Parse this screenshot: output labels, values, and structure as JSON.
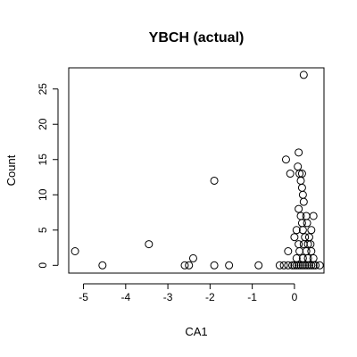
{
  "chart_data": {
    "type": "scatter",
    "title": "YBCH (actual)",
    "xlabel": "CA1",
    "ylabel": "Count",
    "xlim": [
      -5.35,
      0.7
    ],
    "ylim": [
      -1.1,
      28.0
    ],
    "xticks": [
      -5,
      -4,
      -3,
      -2,
      -1,
      0
    ],
    "yticks": [
      0,
      5,
      10,
      15,
      20,
      25
    ],
    "grid": false,
    "legend": "none",
    "points": [
      {
        "x": -5.2,
        "y": 2
      },
      {
        "x": -4.55,
        "y": 0
      },
      {
        "x": -3.45,
        "y": 3
      },
      {
        "x": -2.6,
        "y": 0
      },
      {
        "x": -2.5,
        "y": 0
      },
      {
        "x": -2.4,
        "y": 1
      },
      {
        "x": -1.9,
        "y": 12
      },
      {
        "x": -1.9,
        "y": 0
      },
      {
        "x": -1.55,
        "y": 0
      },
      {
        "x": -0.85,
        "y": 0
      },
      {
        "x": -0.35,
        "y": 0
      },
      {
        "x": -0.2,
        "y": 15
      },
      {
        "x": -0.1,
        "y": 13
      },
      {
        "x": 0.22,
        "y": 27
      },
      {
        "x": 0.1,
        "y": 16
      },
      {
        "x": 0.08,
        "y": 14
      },
      {
        "x": 0.12,
        "y": 13
      },
      {
        "x": 0.18,
        "y": 13
      },
      {
        "x": 0.15,
        "y": 12
      },
      {
        "x": 0.18,
        "y": 11
      },
      {
        "x": 0.2,
        "y": 10
      },
      {
        "x": 0.22,
        "y": 9
      },
      {
        "x": 0.1,
        "y": 8
      },
      {
        "x": 0.15,
        "y": 7
      },
      {
        "x": 0.28,
        "y": 7
      },
      {
        "x": 0.45,
        "y": 7
      },
      {
        "x": 0.18,
        "y": 6
      },
      {
        "x": 0.3,
        "y": 6
      },
      {
        "x": 0.05,
        "y": 5
      },
      {
        "x": 0.2,
        "y": 5
      },
      {
        "x": 0.4,
        "y": 5
      },
      {
        "x": 0.0,
        "y": 4
      },
      {
        "x": 0.25,
        "y": 4
      },
      {
        "x": 0.35,
        "y": 4
      },
      {
        "x": 0.1,
        "y": 3
      },
      {
        "x": 0.22,
        "y": 3
      },
      {
        "x": 0.32,
        "y": 3
      },
      {
        "x": 0.38,
        "y": 3
      },
      {
        "x": -0.15,
        "y": 2
      },
      {
        "x": 0.12,
        "y": 2
      },
      {
        "x": 0.28,
        "y": 2
      },
      {
        "x": 0.4,
        "y": 2
      },
      {
        "x": 0.05,
        "y": 1
      },
      {
        "x": 0.2,
        "y": 1
      },
      {
        "x": 0.32,
        "y": 1
      },
      {
        "x": 0.45,
        "y": 1
      },
      {
        "x": -0.25,
        "y": 0
      },
      {
        "x": -0.15,
        "y": 0
      },
      {
        "x": -0.05,
        "y": 0
      },
      {
        "x": 0.0,
        "y": 0
      },
      {
        "x": 0.05,
        "y": 0
      },
      {
        "x": 0.1,
        "y": 0
      },
      {
        "x": 0.15,
        "y": 0
      },
      {
        "x": 0.2,
        "y": 0
      },
      {
        "x": 0.25,
        "y": 0
      },
      {
        "x": 0.3,
        "y": 0
      },
      {
        "x": 0.35,
        "y": 0
      },
      {
        "x": 0.4,
        "y": 0
      },
      {
        "x": 0.45,
        "y": 0
      },
      {
        "x": 0.5,
        "y": 0
      },
      {
        "x": 0.6,
        "y": 0
      }
    ]
  }
}
